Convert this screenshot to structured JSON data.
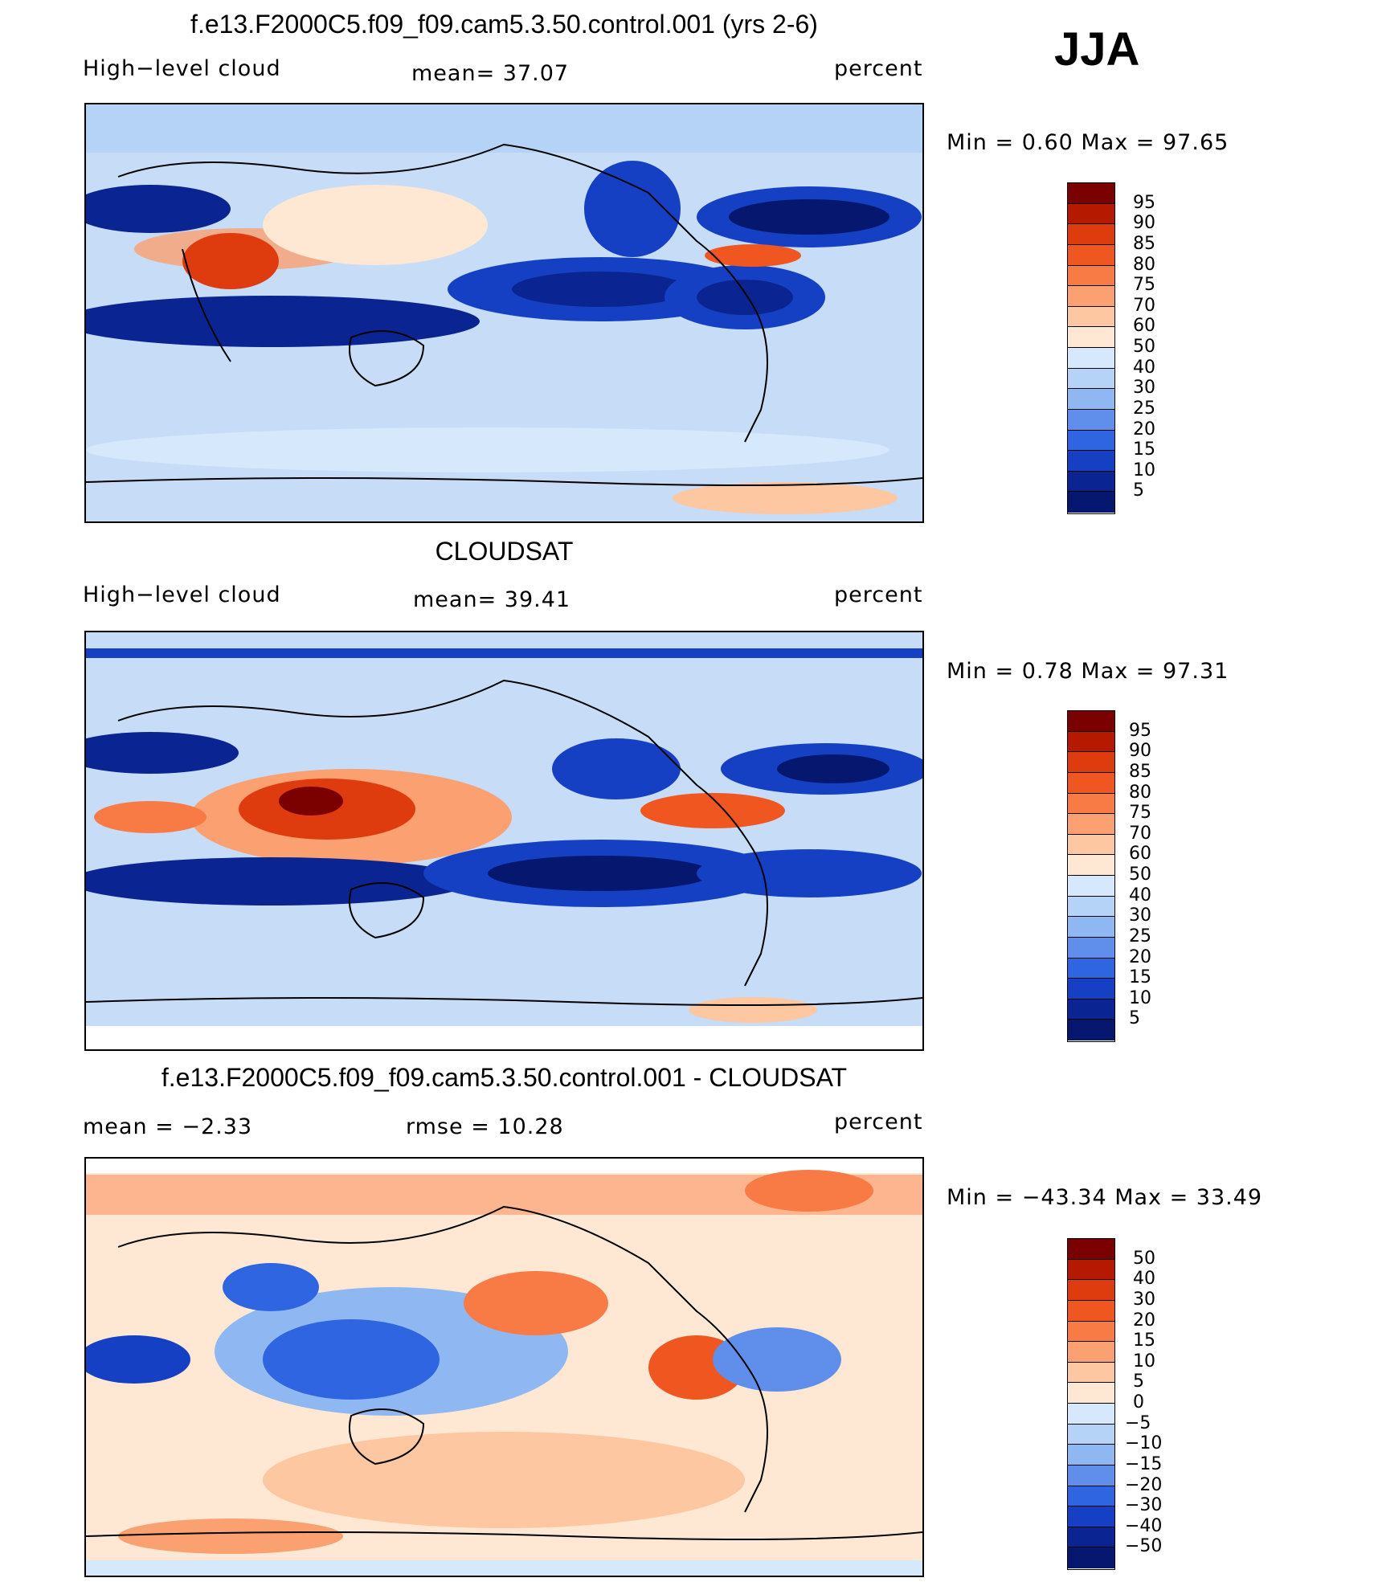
{
  "season": "JJA",
  "panels": [
    {
      "id": "model",
      "title": "f.e13.F2000C5.f09_f09.cam5.3.50.control.001 (yrs 2-6)",
      "left_label": "High−level cloud",
      "center_label": "mean=   37.07",
      "right_label": "percent",
      "minmax": "Min  =     0.60  Max  =    97.65",
      "colorbar": {
        "levels": [
          "95",
          "90",
          "85",
          "80",
          "75",
          "70",
          "60",
          "50",
          "40",
          "30",
          "25",
          "20",
          "15",
          "10",
          "5"
        ],
        "colors": [
          "#7b0000",
          "#b51a00",
          "#de3c0f",
          "#f0561f",
          "#f87a45",
          "#fba070",
          "#fcc7a1",
          "#fee8d4",
          "#d6e8fb",
          "#b5d3f7",
          "#8fb8f2",
          "#5f8fea",
          "#2f65e0",
          "#1640c4",
          "#0a2591",
          "#061770"
        ]
      }
    },
    {
      "id": "obs",
      "title": "CLOUDSAT",
      "left_label": "High−level cloud",
      "center_label": "mean=   39.41",
      "right_label": "percent",
      "minmax": "Min  =     0.78  Max  =    97.31",
      "colorbar": {
        "levels": [
          "95",
          "90",
          "85",
          "80",
          "75",
          "70",
          "60",
          "50",
          "40",
          "30",
          "25",
          "20",
          "15",
          "10",
          "5"
        ],
        "colors": [
          "#7b0000",
          "#b51a00",
          "#de3c0f",
          "#f0561f",
          "#f87a45",
          "#fba070",
          "#fcc7a1",
          "#fee8d4",
          "#d6e8fb",
          "#b5d3f7",
          "#8fb8f2",
          "#5f8fea",
          "#2f65e0",
          "#1640c4",
          "#0a2591",
          "#061770"
        ]
      }
    },
    {
      "id": "diff",
      "title": "f.e13.F2000C5.f09_f09.cam5.3.50.control.001 - CLOUDSAT",
      "left_label": "mean  =    −2.33",
      "center_label": "rmse  =    10.28",
      "right_label": "percent",
      "minmax": "Min  =  −43.34  Max  =     33.49",
      "colorbar": {
        "levels": [
          "50",
          "40",
          "30",
          "20",
          "15",
          "10",
          "5",
          "0",
          "−5",
          "−10",
          "−15",
          "−20",
          "−30",
          "−40",
          "−50"
        ],
        "colors": [
          "#7b0000",
          "#b51a00",
          "#de3c0f",
          "#f0561f",
          "#f87a45",
          "#fba070",
          "#fcc7a1",
          "#fee8d4",
          "#d6e8fb",
          "#b5d3f7",
          "#8fb8f2",
          "#5f8fea",
          "#2f65e0",
          "#1640c4",
          "#0a2591",
          "#061770"
        ]
      }
    }
  ]
}
